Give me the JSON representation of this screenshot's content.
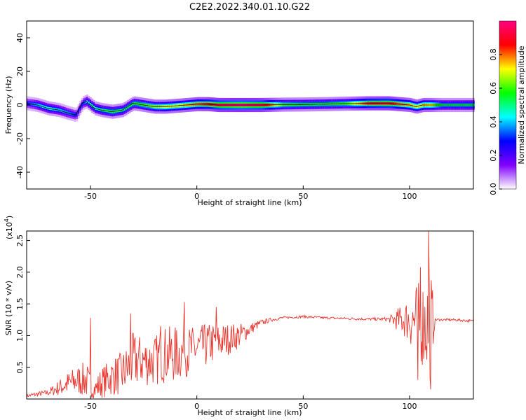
{
  "title": "C2E2.2022.340.01.10.G22",
  "chart_data": [
    {
      "type": "heatmap",
      "xlabel": "Height of straight line (km)",
      "ylabel": "Frequency (Hz)",
      "xlim": [
        -80,
        130
      ],
      "ylim": [
        -50,
        50
      ],
      "xticks": [
        -50,
        0,
        50,
        100
      ],
      "yticks": [
        -40,
        -20,
        0,
        20,
        40
      ],
      "ridge": {
        "x": [
          -80,
          -75,
          -70,
          -65,
          -60,
          -57,
          -54,
          -52,
          -50,
          -48,
          -45,
          -40,
          -35,
          -30,
          -25,
          -20,
          -15,
          -10,
          -5,
          0,
          5,
          10,
          20,
          30,
          40,
          50,
          60,
          70,
          80,
          90,
          95,
          100,
          103,
          106,
          110,
          115,
          120,
          125,
          130
        ],
        "freq": [
          1,
          0,
          -2,
          -3,
          -5,
          -6,
          1,
          2,
          0,
          -2,
          -3,
          -4,
          -3,
          1,
          0,
          -1,
          -1,
          -0.5,
          0,
          0.5,
          0.5,
          0,
          0,
          0,
          0.2,
          0.3,
          0.5,
          0.8,
          1,
          1,
          0.5,
          0,
          -1,
          0,
          0,
          0,
          0,
          0,
          0
        ],
        "amplitude": [
          0.3,
          0.4,
          0.45,
          0.4,
          0.35,
          0.3,
          0.3,
          0.4,
          0.5,
          0.45,
          0.5,
          0.55,
          0.5,
          0.55,
          0.6,
          0.65,
          0.7,
          0.7,
          0.75,
          0.8,
          0.85,
          0.95,
          1,
          0.95,
          0.6,
          0.55,
          0.55,
          0.6,
          0.85,
          0.9,
          0.8,
          0.75,
          0.7,
          0.75,
          0.7,
          0.5,
          0.5,
          0.5,
          0.5
        ]
      },
      "colorbar": {
        "label": "Normalized spectral amplitude",
        "range": [
          0,
          1
        ],
        "ticks": [
          "0.0",
          "0.2",
          "0.4",
          "0.6",
          "0.8"
        ],
        "colors": [
          "#ffffff",
          "#8000ff",
          "#0000ff",
          "#00ffff",
          "#00ff00",
          "#ffff00",
          "#ff0000",
          "#ff0080"
        ]
      }
    },
    {
      "type": "line",
      "xlabel": "Height of straight line (km)",
      "ylabel": "SNR (10 * v/v)",
      "scale_note": "(x10",
      "scale_exp": "4",
      "scale_close": ")",
      "xlim": [
        -80,
        130
      ],
      "ylim": [
        0,
        2.65
      ],
      "xticks": [
        -50,
        0,
        50,
        100
      ],
      "yticks": [
        "0.5",
        "1.0",
        "1.5",
        "2.0",
        "2.5"
      ],
      "color": "#e8372f",
      "envelope": {
        "x": [
          -80,
          -70,
          -60,
          -55,
          -52,
          -50,
          -48,
          -45,
          -40,
          -35,
          -32,
          -30,
          -25,
          -20,
          -15,
          -10,
          -5,
          0,
          5,
          10,
          15,
          20,
          25,
          30,
          35,
          40,
          50,
          60,
          70,
          80,
          90,
          92,
          95,
          98,
          100,
          103,
          106,
          108,
          110,
          112,
          115,
          120,
          125,
          130
        ],
        "y": [
          0.05,
          0.1,
          0.25,
          0.3,
          0.3,
          0.2,
          0.15,
          0.25,
          0.35,
          0.4,
          0.5,
          0.6,
          0.6,
          0.6,
          0.7,
          0.7,
          0.75,
          0.8,
          0.85,
          0.9,
          0.95,
          1.0,
          1.1,
          1.2,
          1.25,
          1.28,
          1.3,
          1.28,
          1.27,
          1.26,
          1.26,
          1.25,
          1.25,
          1.25,
          1.25,
          1.22,
          1.2,
          1.2,
          1.2,
          1.25,
          1.25,
          1.25,
          1.24,
          1.23
        ],
        "spread": [
          0.03,
          0.05,
          0.2,
          0.25,
          0.3,
          0.2,
          0.15,
          0.25,
          0.3,
          0.35,
          0.4,
          0.45,
          0.4,
          0.4,
          0.45,
          0.45,
          0.4,
          0.35,
          0.35,
          0.3,
          0.25,
          0.2,
          0.1,
          0.05,
          0.03,
          0.02,
          0.02,
          0.02,
          0.02,
          0.02,
          0.03,
          0.1,
          0.2,
          0.3,
          0.4,
          0.6,
          0.7,
          0.8,
          0.9,
          0.02,
          0.02,
          0.02,
          0.02,
          0.02
        ]
      },
      "spikes": [
        {
          "x": -50,
          "y": 1.28
        },
        {
          "x": -31,
          "y": 1.35
        },
        {
          "x": -17,
          "y": 1.15
        },
        {
          "x": -6,
          "y": 1.53
        },
        {
          "x": 9,
          "y": 1.45
        },
        {
          "x": 109,
          "y": 2.65
        },
        {
          "x": 110,
          "y": 0.15
        },
        {
          "x": 104,
          "y": 0.3
        },
        {
          "x": 105,
          "y": 2.08
        }
      ]
    }
  ]
}
